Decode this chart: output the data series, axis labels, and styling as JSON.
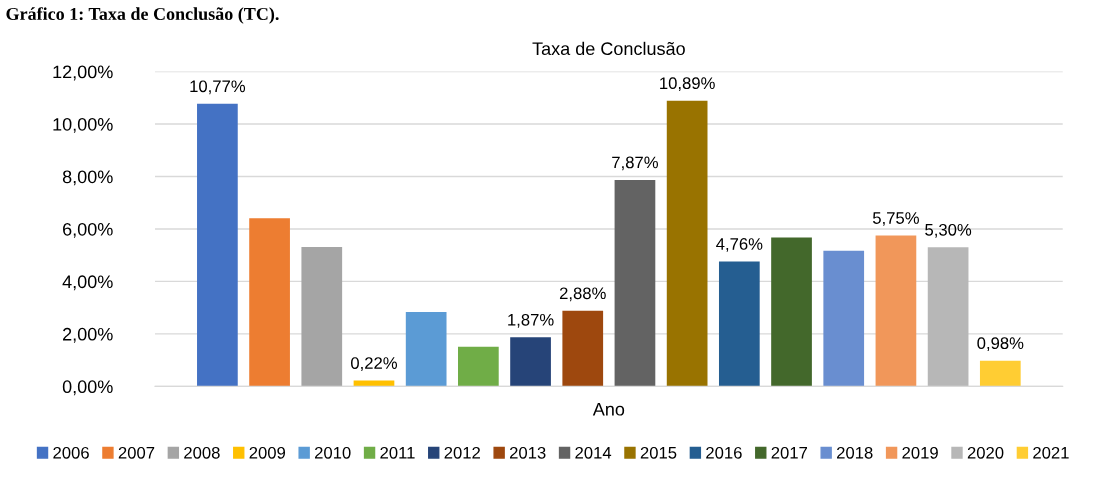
{
  "chart_data": {
    "type": "bar",
    "title": "Taxa de Conclusão",
    "xlabel": "Ano",
    "annotations": [
      "Gráfico 1: Taxa de Conclusão (TC)."
    ],
    "categories": [
      null
    ],
    "series": [
      {
        "name": "2006",
        "color": "#4472c4",
        "values": [
          10.77
        ],
        "value_labels": [
          "10,77%"
        ]
      },
      {
        "name": "2007",
        "color": "#ed7d31",
        "values": [
          6.41
        ],
        "value_labels": [
          null
        ]
      },
      {
        "name": "2008",
        "color": "#a5a5a5",
        "values": [
          5.31
        ],
        "value_labels": [
          null
        ]
      },
      {
        "name": "2009",
        "color": "#ffc000",
        "values": [
          0.22
        ],
        "value_labels": [
          "0,22%"
        ]
      },
      {
        "name": "2010",
        "color": "#5b9bd5",
        "values": [
          2.83
        ],
        "value_labels": [
          null
        ]
      },
      {
        "name": "2011",
        "color": "#70ad47",
        "values": [
          1.51
        ],
        "value_labels": [
          null
        ]
      },
      {
        "name": "2012",
        "color": "#264478",
        "values": [
          1.87
        ],
        "value_labels": [
          "1,87%"
        ]
      },
      {
        "name": "2013",
        "color": "#9e480e",
        "values": [
          2.88
        ],
        "value_labels": [
          "2,88%"
        ]
      },
      {
        "name": "2014",
        "color": "#636363",
        "values": [
          7.87
        ],
        "value_labels": [
          "7,87%"
        ]
      },
      {
        "name": "2015",
        "color": "#997300",
        "values": [
          10.89
        ],
        "value_labels": [
          "10,89%"
        ]
      },
      {
        "name": "2016",
        "color": "#255e91",
        "values": [
          4.76
        ],
        "value_labels": [
          "4,76%"
        ]
      },
      {
        "name": "2017",
        "color": "#43682b",
        "values": [
          5.67
        ],
        "value_labels": [
          null
        ]
      },
      {
        "name": "2018",
        "color": "#698ed0",
        "values": [
          5.17
        ],
        "value_labels": [
          null
        ]
      },
      {
        "name": "2019",
        "color": "#f1975a",
        "values": [
          5.75
        ],
        "value_labels": [
          "5,75%"
        ]
      },
      {
        "name": "2020",
        "color": "#b7b7b7",
        "values": [
          5.3
        ],
        "value_labels": [
          "5,30%"
        ]
      },
      {
        "name": "2021",
        "color": "#ffcd33",
        "values": [
          0.98
        ],
        "value_labels": [
          "0,98%"
        ]
      }
    ],
    "ylim": [
      0,
      12
    ],
    "yticks": [
      {
        "value": 0,
        "label": "0,00%"
      },
      {
        "value": 2,
        "label": "2,00%"
      },
      {
        "value": 4,
        "label": "4,00%"
      },
      {
        "value": 6,
        "label": "6,00%"
      },
      {
        "value": 8,
        "label": "8,00%"
      },
      {
        "value": 10,
        "label": "10,00%"
      },
      {
        "value": 12,
        "label": "12,00%"
      }
    ],
    "grid": "y",
    "legend": "bottom"
  }
}
